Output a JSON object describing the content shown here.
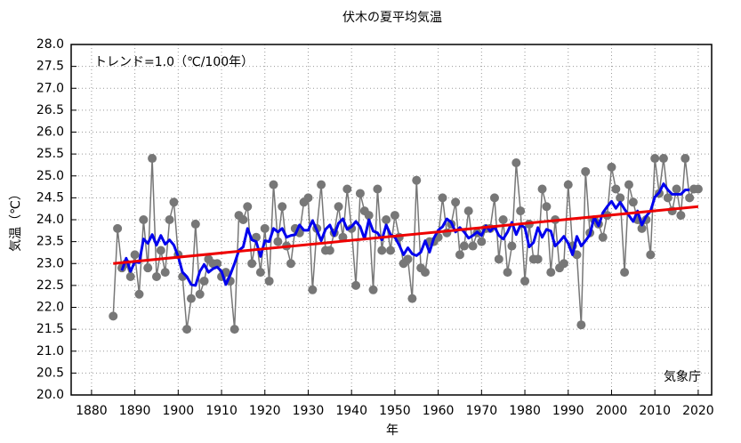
{
  "chart_data": {
    "type": "line",
    "title": "伏木の夏平均気温",
    "xlabel": "年",
    "ylabel": "気温（℃）",
    "annotation": "トレンド=1.0（℃/100年）",
    "source": "気象庁",
    "x": [
      1885,
      1886,
      1887,
      1888,
      1889,
      1890,
      1891,
      1892,
      1893,
      1894,
      1895,
      1896,
      1897,
      1898,
      1899,
      1900,
      1901,
      1902,
      1903,
      1904,
      1905,
      1906,
      1907,
      1908,
      1909,
      1910,
      1911,
      1912,
      1913,
      1914,
      1915,
      1916,
      1917,
      1918,
      1919,
      1920,
      1921,
      1922,
      1923,
      1924,
      1925,
      1926,
      1927,
      1928,
      1929,
      1930,
      1931,
      1932,
      1933,
      1934,
      1935,
      1936,
      1937,
      1938,
      1939,
      1940,
      1941,
      1942,
      1943,
      1944,
      1945,
      1946,
      1947,
      1948,
      1949,
      1950,
      1951,
      1952,
      1953,
      1954,
      1955,
      1956,
      1957,
      1958,
      1959,
      1960,
      1961,
      1962,
      1963,
      1964,
      1965,
      1966,
      1967,
      1968,
      1969,
      1970,
      1971,
      1972,
      1973,
      1974,
      1975,
      1976,
      1977,
      1978,
      1979,
      1980,
      1981,
      1982,
      1983,
      1984,
      1985,
      1986,
      1987,
      1988,
      1989,
      1990,
      1991,
      1992,
      1993,
      1994,
      1995,
      1996,
      1997,
      1998,
      1999,
      2000,
      2001,
      2002,
      2003,
      2004,
      2005,
      2006,
      2007,
      2008,
      2009,
      2010,
      2011,
      2012,
      2013,
      2014,
      2015,
      2016,
      2017,
      2018,
      2019,
      2020
    ],
    "series": [
      {
        "color": "#777777",
        "markers": true,
        "values": [
          21.8,
          23.8,
          22.9,
          23.0,
          22.7,
          23.2,
          22.3,
          24.0,
          22.9,
          25.4,
          22.7,
          23.3,
          22.8,
          24.0,
          24.4,
          23.2,
          22.7,
          21.5,
          22.2,
          23.9,
          22.3,
          22.6,
          23.1,
          23.0,
          23.0,
          22.7,
          22.8,
          22.6,
          21.5,
          24.1,
          24.0,
          24.3,
          23.0,
          23.6,
          22.8,
          23.8,
          22.6,
          24.8,
          23.5,
          24.3,
          23.4,
          23.0,
          23.8,
          23.7,
          24.4,
          24.5,
          22.4,
          23.8,
          24.8,
          23.3,
          23.3,
          23.7,
          24.3,
          23.6,
          24.7,
          23.8,
          22.5,
          24.6,
          24.2,
          24.1,
          22.4,
          24.7,
          23.3,
          24.0,
          23.3,
          24.1,
          23.6,
          23.0,
          23.1,
          22.2,
          24.9,
          22.9,
          22.8,
          23.5,
          23.5,
          23.6,
          24.5,
          23.7,
          23.9,
          24.4,
          23.2,
          23.4,
          24.2,
          23.4,
          23.7,
          23.5,
          23.8,
          23.8,
          24.5,
          23.1,
          24.0,
          22.8,
          23.4,
          25.3,
          24.2,
          22.6,
          23.9,
          23.1,
          23.1,
          24.7,
          24.3,
          22.8,
          24.0,
          22.9,
          23.0,
          24.8,
          23.4,
          23.2,
          21.6,
          25.1,
          23.7,
          24.0,
          23.9,
          23.6,
          24.1,
          25.2,
          24.7,
          24.5,
          22.8,
          24.8,
          24.4,
          24.0,
          23.8,
          24.0,
          23.2,
          25.4,
          24.6,
          25.4,
          24.5,
          24.2,
          24.7,
          24.1,
          25.4,
          24.5,
          24.7,
          24.7
        ]
      },
      {
        "color": "#0000ee",
        "markers": false,
        "values": [
          null,
          null,
          22.84,
          23.12,
          22.82,
          23.04,
          23.02,
          23.56,
          23.46,
          23.66,
          23.42,
          23.64,
          23.44,
          23.54,
          23.42,
          23.16,
          22.8,
          22.7,
          22.52,
          22.5,
          22.82,
          22.98,
          22.8,
          22.88,
          22.92,
          22.82,
          22.52,
          22.74,
          23.0,
          23.3,
          23.38,
          23.8,
          23.54,
          23.5,
          23.16,
          23.52,
          23.5,
          23.8,
          23.72,
          23.8,
          23.6,
          23.64,
          23.66,
          23.88,
          23.76,
          23.76,
          23.98,
          23.76,
          23.52,
          23.78,
          23.88,
          23.64,
          23.92,
          24.02,
          23.78,
          23.84,
          23.96,
          23.84,
          23.56,
          24.0,
          23.74,
          23.7,
          23.54,
          23.88,
          23.66,
          23.6,
          23.42,
          23.2,
          23.36,
          23.22,
          23.18,
          23.26,
          23.52,
          23.26,
          23.58,
          23.76,
          23.84,
          24.02,
          23.94,
          23.72,
          23.82,
          23.72,
          23.58,
          23.64,
          23.72,
          23.64,
          23.86,
          23.74,
          23.84,
          23.64,
          23.56,
          23.72,
          23.94,
          23.66,
          23.88,
          23.82,
          23.38,
          23.48,
          23.82,
          23.6,
          23.78,
          23.74,
          23.4,
          23.5,
          23.62,
          23.46,
          23.2,
          23.62,
          23.4,
          23.52,
          23.66,
          24.06,
          23.86,
          24.16,
          24.3,
          24.42,
          24.26,
          24.4,
          24.24,
          24.1,
          23.96,
          24.2,
          23.88,
          24.08,
          24.2,
          24.52,
          24.62,
          24.82,
          24.68,
          24.58,
          24.58,
          24.58,
          24.68,
          24.68,
          null,
          null
        ]
      }
    ],
    "trend": {
      "color": "#ee0000",
      "x": [
        1885,
        2020
      ],
      "values": [
        23.0,
        24.3
      ]
    },
    "xlim": [
      1875.3,
      2023.1
    ],
    "xticks": [
      1880,
      1890,
      1900,
      1910,
      1920,
      1930,
      1940,
      1950,
      1960,
      1970,
      1980,
      1990,
      2000,
      2010,
      2020
    ],
    "ylim": [
      20,
      28
    ],
    "yticks": [
      {
        "value": 20,
        "label": "20.0"
      },
      {
        "value": 20.5,
        "label": "20.5"
      },
      {
        "value": 21,
        "label": "21.0"
      },
      {
        "value": 21.5,
        "label": "21.5"
      },
      {
        "value": 22,
        "label": "22.0"
      },
      {
        "value": 22.5,
        "label": "22.5"
      },
      {
        "value": 23,
        "label": "23.0"
      },
      {
        "value": 23.5,
        "label": "23.5"
      },
      {
        "value": 24,
        "label": "24.0"
      },
      {
        "value": 24.5,
        "label": "24.5"
      },
      {
        "value": 25,
        "label": "25.0"
      },
      {
        "value": 25.5,
        "label": "25.5"
      },
      {
        "value": 26,
        "label": "26.0"
      },
      {
        "value": 26.5,
        "label": "26.5"
      },
      {
        "value": 27,
        "label": "27.0"
      },
      {
        "value": 27.5,
        "label": "27.5"
      },
      {
        "value": 28,
        "label": "28.0"
      }
    ],
    "grid": true
  }
}
